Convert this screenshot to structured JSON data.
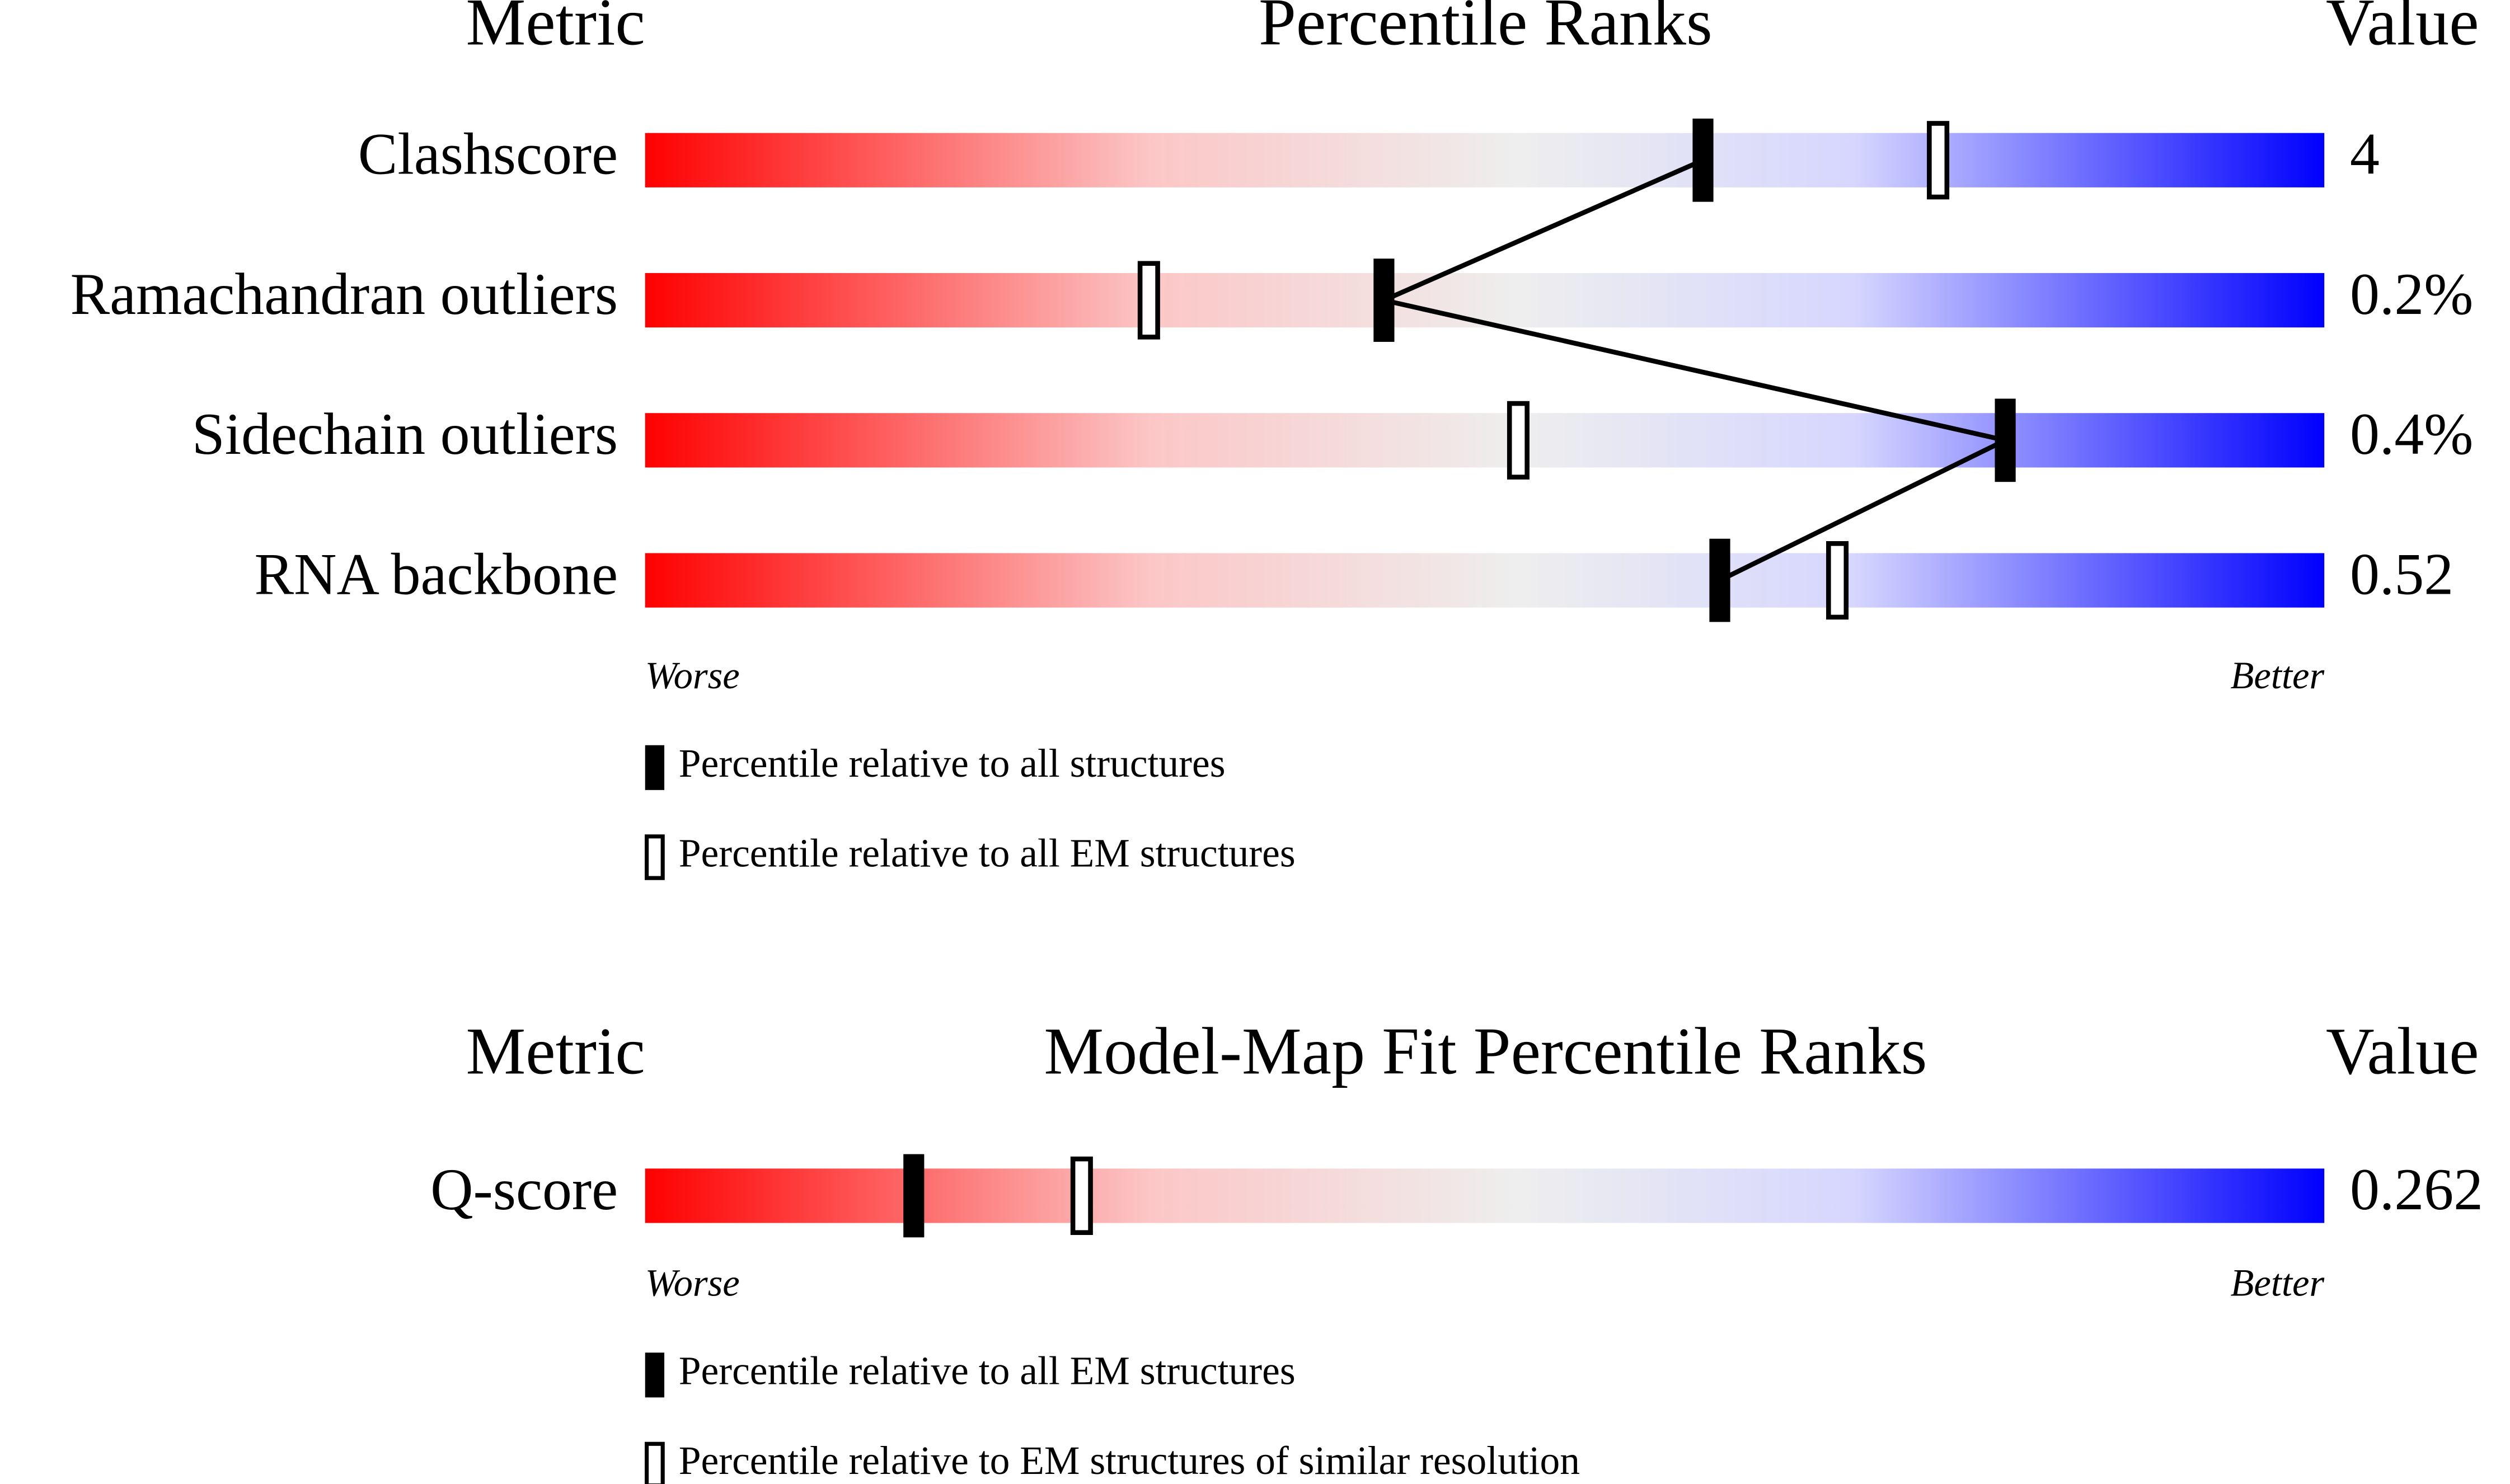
{
  "charts": [
    {
      "header": {
        "metric": "Metric",
        "title": "Percentile Ranks",
        "value": "Value"
      },
      "xlim": [
        0,
        100
      ],
      "rows": [
        {
          "metric": "Clashscore",
          "value": "4",
          "percentile_filled": 63,
          "percentile_hollow": 77
        },
        {
          "metric": "Ramachandran outliers",
          "value": "0.2%",
          "percentile_filled": 44,
          "percentile_hollow": 30
        },
        {
          "metric": "Sidechain outliers",
          "value": "0.4%",
          "percentile_filled": 81,
          "percentile_hollow": 52
        },
        {
          "metric": "RNA backbone",
          "value": "0.52",
          "percentile_filled": 64,
          "percentile_hollow": 71
        }
      ],
      "scale": {
        "worse": "Worse",
        "better": "Better"
      },
      "legend": {
        "filled": "Percentile relative to all structures",
        "hollow": "Percentile relative to all EM structures"
      }
    },
    {
      "header": {
        "metric": "Metric",
        "title": "Model-Map Fit Percentile Ranks",
        "value": "Value"
      },
      "xlim": [
        0,
        100
      ],
      "rows": [
        {
          "metric": "Q-score",
          "value": "0.262",
          "percentile_filled": 16,
          "percentile_hollow": 26
        }
      ],
      "scale": {
        "worse": "Worse",
        "better": "Better"
      },
      "legend": {
        "filled": "Percentile relative to all EM structures",
        "hollow": "Percentile relative to EM structures of similar resolution"
      }
    }
  ]
}
